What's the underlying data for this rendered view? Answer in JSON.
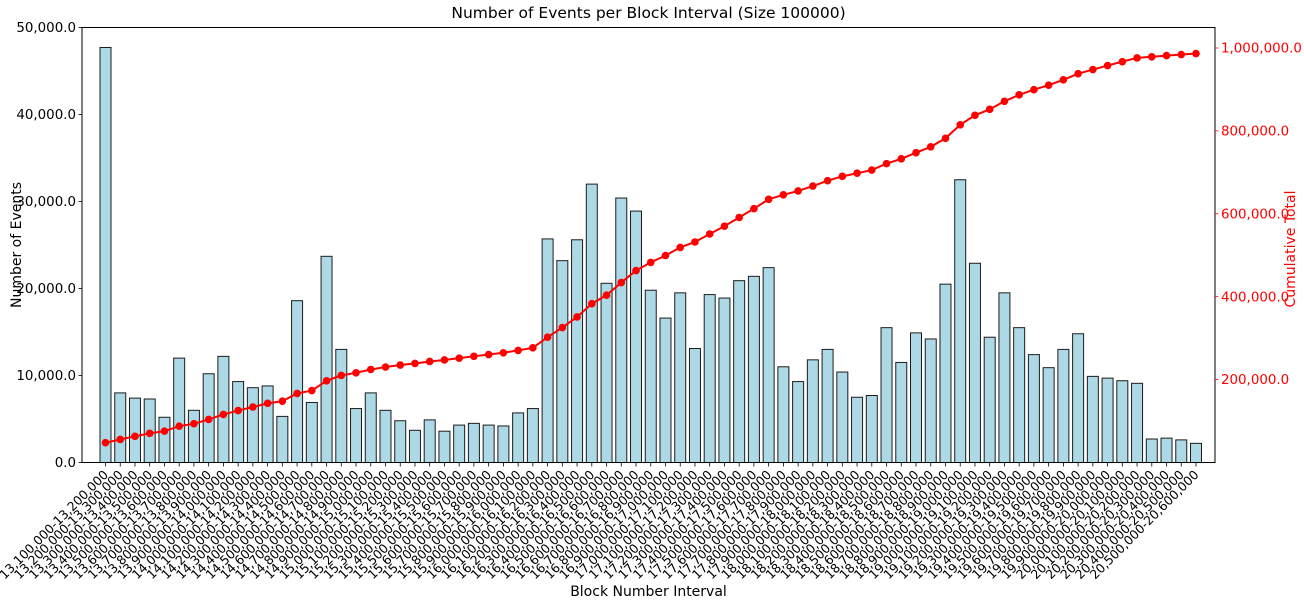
{
  "chart_data": {
    "type": "bar",
    "overlay": "line",
    "title": "Number of Events per Block Interval (Size 100000)",
    "xlabel": "Block Number Interval",
    "ylabel_left": "Number of Events",
    "ylabel_right": "Cumulative Total",
    "grid": false,
    "legend": "none",
    "x_tick_rotation": 45,
    "colors": {
      "bar_fill": "#ADD8E6",
      "bar_edge": "#1c1c1c",
      "line": "#ff0000",
      "right_axis": "#ff0000",
      "axis_text": "#000000"
    },
    "categories": [
      "13,100,000-13,200,000",
      "13,200,000-13,300,000",
      "13,300,000-13,400,000",
      "13,400,000-13,500,000",
      "13,500,000-13,600,000",
      "13,600,000-13,700,000",
      "13,700,000-13,800,000",
      "13,800,000-13,900,000",
      "13,900,000-14,000,000",
      "14,000,000-14,100,000",
      "14,100,000-14,200,000",
      "14,200,000-14,300,000",
      "14,300,000-14,400,000",
      "14,400,000-14,500,000",
      "14,500,000-14,600,000",
      "14,600,000-14,700,000",
      "14,700,000-14,800,000",
      "14,800,000-14,900,000",
      "14,900,000-15,000,000",
      "15,000,000-15,100,000",
      "15,100,000-15,200,000",
      "15,200,000-15,300,000",
      "15,300,000-15,400,000",
      "15,400,000-15,500,000",
      "15,500,000-15,600,000",
      "15,600,000-15,700,000",
      "15,700,000-15,800,000",
      "15,800,000-15,900,000",
      "15,900,000-16,000,000",
      "16,000,000-16,100,000",
      "16,100,000-16,200,000",
      "16,200,000-16,300,000",
      "16,300,000-16,400,000",
      "16,400,000-16,500,000",
      "16,500,000-16,600,000",
      "16,600,000-16,700,000",
      "16,700,000-16,800,000",
      "16,800,000-16,900,000",
      "16,900,000-17,000,000",
      "17,000,000-17,100,000",
      "17,100,000-17,200,000",
      "17,200,000-17,300,000",
      "17,300,000-17,400,000",
      "17,400,000-17,500,000",
      "17,500,000-17,600,000",
      "17,600,000-17,700,000",
      "17,700,000-17,800,000",
      "17,800,000-17,900,000",
      "17,900,000-18,000,000",
      "18,000,000-18,100,000",
      "18,100,000-18,200,000",
      "18,200,000-18,300,000",
      "18,300,000-18,400,000",
      "18,400,000-18,500,000",
      "18,500,000-18,600,000",
      "18,600,000-18,700,000",
      "18,700,000-18,800,000",
      "18,800,000-18,900,000",
      "18,900,000-19,000,000",
      "19,000,000-19,100,000",
      "19,100,000-19,200,000",
      "19,200,000-19,300,000",
      "19,300,000-19,400,000",
      "19,400,000-19,500,000",
      "19,500,000-19,600,000",
      "19,600,000-19,700,000",
      "19,700,000-19,800,000",
      "19,800,000-19,900,000",
      "19,900,000-20,000,000",
      "20,000,000-20,100,000",
      "20,100,000-20,200,000",
      "20,200,000-20,300,000",
      "20,300,000-20,400,000",
      "20,400,000-20,500,000",
      "20,500,000-20,600,000"
    ],
    "series": [
      {
        "name": "Number of Events",
        "type": "bar",
        "values": [
          47700,
          8000,
          7400,
          7300,
          5200,
          12000,
          6000,
          10200,
          12200,
          9300,
          8600,
          8800,
          5300,
          18600,
          6900,
          23700,
          13000,
          6200,
          8000,
          6000,
          4800,
          3700,
          4900,
          3600,
          4300,
          4500,
          4300,
          4200,
          5700,
          6200,
          25700,
          23200,
          25600,
          32000,
          20600,
          30400,
          28900,
          19800,
          16600,
          19500,
          13100,
          19300,
          18900,
          20900,
          21400,
          22400,
          11000,
          9300,
          11800,
          13000,
          10400,
          7500,
          7700,
          15500,
          11500,
          14900,
          14200,
          20500,
          32500,
          22900,
          14400,
          19500,
          15500,
          12400,
          10900,
          13000,
          14800,
          9900,
          9700,
          9400,
          9100,
          2700,
          2800,
          2600,
          2200
        ]
      },
      {
        "name": "Cumulative Total",
        "type": "line",
        "marker": "circle",
        "values": [
          47700,
          55700,
          63100,
          70400,
          75600,
          87600,
          93600,
          103800,
          116000,
          125300,
          133900,
          142700,
          148000,
          166600,
          173500,
          197200,
          210200,
          216400,
          224400,
          230400,
          235200,
          238900,
          243800,
          247400,
          251700,
          256200,
          260500,
          264700,
          270400,
          276600,
          302300,
          325500,
          351100,
          383100,
          403700,
          434100,
          463000,
          482800,
          499400,
          518900,
          532000,
          551300,
          570200,
          591100,
          612500,
          634900,
          645900,
          655200,
          667000,
          680000,
          690400,
          697900,
          705600,
          721100,
          732600,
          747500,
          761700,
          782200,
          814700,
          837600,
          852000,
          871500,
          887000,
          899400,
          910300,
          923300,
          938100,
          948000,
          957700,
          967100,
          976200,
          978900,
          981700,
          984300,
          986500
        ]
      }
    ],
    "axes": {
      "left": {
        "range": [
          0,
          50000
        ],
        "ticks": [
          {
            "value": 0,
            "label": "0.0"
          },
          {
            "value": 10000,
            "label": "10,000.0"
          },
          {
            "value": 20000,
            "label": "20,000.0"
          },
          {
            "value": 30000,
            "label": "30,000.0"
          },
          {
            "value": 40000,
            "label": "40,000.0"
          },
          {
            "value": 50000,
            "label": "50,000.0"
          }
        ]
      },
      "right": {
        "range": [
          0,
          1049500
        ],
        "ticks": [
          {
            "value": 200000,
            "label": "200,000.0"
          },
          {
            "value": 400000,
            "label": "400,000.0"
          },
          {
            "value": 600000,
            "label": "600,000.0"
          },
          {
            "value": 800000,
            "label": "800,000.0"
          },
          {
            "value": 1000000,
            "label": "1,000,000.0"
          }
        ]
      }
    }
  }
}
